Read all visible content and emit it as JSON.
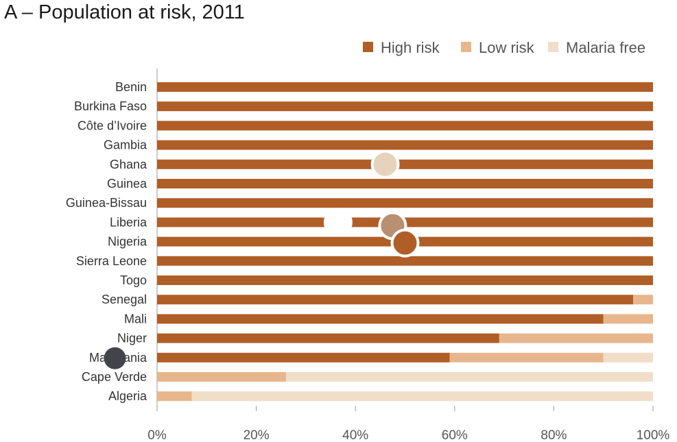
{
  "title": "A – Population at risk, 2011",
  "colors": {
    "high_risk": "#b05e27",
    "low_risk": "#e8b68c",
    "malaria_free": "#f1dec9",
    "axis": "#999999"
  },
  "chart_data": {
    "type": "bar",
    "orientation": "horizontal",
    "stacked": true,
    "title": "A – Population at risk, 2011",
    "xlabel": "",
    "ylabel": "",
    "xlim": [
      0,
      100
    ],
    "x_ticks": [
      "0%",
      "20%",
      "40%",
      "60%",
      "80%",
      "100%"
    ],
    "x_tick_values": [
      0,
      20,
      40,
      60,
      80,
      100
    ],
    "grid": false,
    "legend_position": "top-right",
    "categories": [
      "Benin",
      "Burkina Faso",
      "Côte d’Ivoire",
      "Gambia",
      "Ghana",
      "Guinea",
      "Guinea-Bissau",
      "Liberia",
      "Nigeria",
      "Sierra Leone",
      "Togo",
      "Senegal",
      "Mali",
      "Niger",
      "Mauritania",
      "Cape Verde",
      "Algeria"
    ],
    "series": [
      {
        "name": "High risk",
        "color": "#b05e27",
        "values": [
          100,
          100,
          100,
          100,
          100,
          100,
          100,
          100,
          100,
          100,
          100,
          96,
          90,
          69,
          59,
          0,
          0
        ]
      },
      {
        "name": "Low risk",
        "color": "#e8b68c",
        "values": [
          0,
          0,
          0,
          0,
          0,
          0,
          0,
          0,
          0,
          0,
          0,
          4,
          10,
          31,
          31,
          26,
          7
        ]
      },
      {
        "name": "Malaria free",
        "color": "#f1dec9",
        "values": [
          0,
          0,
          0,
          0,
          0,
          0,
          0,
          0,
          0,
          0,
          0,
          0,
          0,
          0,
          10,
          74,
          93
        ]
      }
    ]
  },
  "markers": [
    {
      "name": "marker-beige-circle",
      "color": "#e6d3bd",
      "x_value": 46,
      "category": "Ghana"
    },
    {
      "name": "marker-white-circle",
      "color": "#ffffff",
      "x_value": 36.5,
      "category": "Liberia"
    },
    {
      "name": "marker-taupe-circle",
      "color": "#b98f72",
      "x_value": 47.5,
      "category": "Liberia"
    },
    {
      "name": "marker-rust-circle",
      "color": "#b05e27",
      "x_value": 50,
      "category": "Nigeria"
    },
    {
      "name": "marker-dark-circle",
      "color": "#43434a",
      "x_value": -8.5,
      "category": "Mauritania"
    }
  ]
}
